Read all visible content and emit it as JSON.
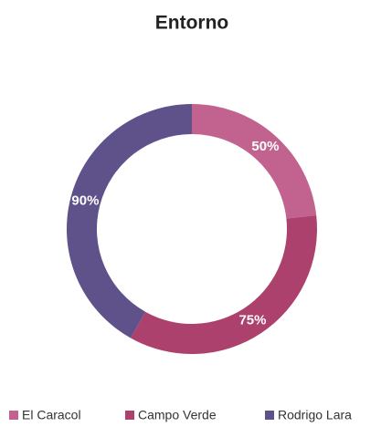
{
  "chart_data": {
    "type": "donut",
    "title": "Entorno",
    "categories": [
      "El Caracol",
      "Campo Verde",
      "Rodrigo Lara"
    ],
    "values": [
      50,
      75,
      90
    ],
    "value_labels": [
      "50%",
      "75%",
      "90%"
    ],
    "colors": [
      "#c2628f",
      "#ad416d",
      "#5f5189"
    ],
    "legend": "bottom"
  }
}
